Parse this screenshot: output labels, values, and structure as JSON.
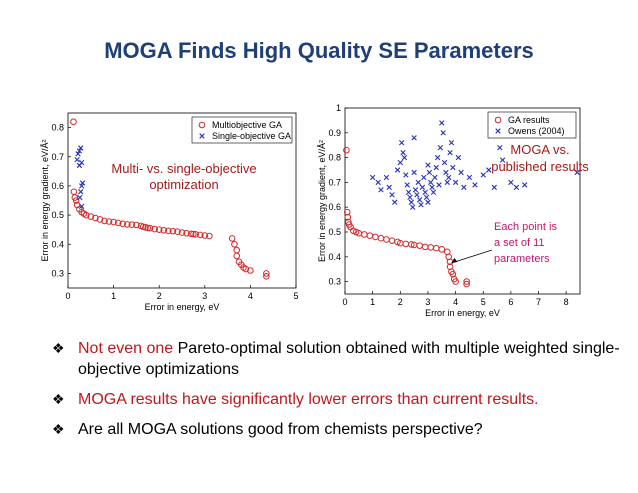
{
  "title": "MOGA Finds High Quality SE Parameters",
  "colors": {
    "title": "#1f3f77",
    "red_text": "#c0171c",
    "series_red": "#d42a2a",
    "series_blue": "#2633b8",
    "annotation_pink": "#c2176d"
  },
  "bullets": [
    {
      "icon": "diamond-bullet-icon",
      "parts": [
        {
          "text": "Not even one",
          "red": true
        },
        {
          "text": " Pareto-optimal solution obtained with multiple weighted single-objective optimizations",
          "red": false
        }
      ]
    },
    {
      "icon": "diamond-bullet-icon",
      "parts": [
        {
          "text": "MOGA results have significantly lower errors than current results.",
          "red": true
        }
      ]
    },
    {
      "icon": "diamond-bullet-icon",
      "parts": [
        {
          "text": "Are all MOGA solutions good from chemists perspective?",
          "red": false
        }
      ]
    }
  ],
  "chart_data": [
    {
      "type": "scatter",
      "xlabel": "Error in energy, eV",
      "ylabel": "Error in energy gradient, eV/Å²",
      "xlim": [
        0,
        5
      ],
      "ylim": [
        0.25,
        0.85
      ],
      "xticks": [
        "0",
        "1",
        "2",
        "3",
        "4",
        "5"
      ],
      "yticks": [
        "0.3",
        "0.4",
        "0.5",
        "0.6",
        "0.7",
        "0.8"
      ],
      "legend_position": "top-right",
      "annotation": [
        "Multi- vs. single-objective",
        "optimization"
      ],
      "series": [
        {
          "name": "Multiobjective GA",
          "marker": "circle",
          "color": "#d42a2a",
          "points": [
            [
              0.12,
              0.82
            ],
            [
              0.13,
              0.58
            ],
            [
              0.15,
              0.56
            ],
            [
              0.18,
              0.55
            ],
            [
              0.2,
              0.535
            ],
            [
              0.25,
              0.52
            ],
            [
              0.3,
              0.51
            ],
            [
              0.35,
              0.505
            ],
            [
              0.4,
              0.5
            ],
            [
              0.5,
              0.495
            ],
            [
              0.6,
              0.49
            ],
            [
              0.7,
              0.485
            ],
            [
              0.8,
              0.48
            ],
            [
              0.9,
              0.478
            ],
            [
              1.0,
              0.476
            ],
            [
              1.1,
              0.473
            ],
            [
              1.2,
              0.47
            ],
            [
              1.3,
              0.468
            ],
            [
              1.4,
              0.467
            ],
            [
              1.5,
              0.466
            ],
            [
              1.6,
              0.463
            ],
            [
              1.65,
              0.46
            ],
            [
              1.7,
              0.458
            ],
            [
              1.75,
              0.456
            ],
            [
              1.8,
              0.455
            ],
            [
              1.9,
              0.452
            ],
            [
              2.0,
              0.45
            ],
            [
              2.1,
              0.448
            ],
            [
              2.2,
              0.446
            ],
            [
              2.3,
              0.445
            ],
            [
              2.4,
              0.443
            ],
            [
              2.5,
              0.44
            ],
            [
              2.6,
              0.438
            ],
            [
              2.7,
              0.436
            ],
            [
              2.75,
              0.435
            ],
            [
              2.8,
              0.434
            ],
            [
              2.9,
              0.432
            ],
            [
              3.0,
              0.43
            ],
            [
              3.1,
              0.428
            ],
            [
              3.6,
              0.42
            ],
            [
              3.65,
              0.4
            ],
            [
              3.7,
              0.38
            ],
            [
              3.7,
              0.36
            ],
            [
              3.75,
              0.34
            ],
            [
              3.8,
              0.33
            ],
            [
              3.85,
              0.32
            ],
            [
              3.9,
              0.315
            ],
            [
              4.0,
              0.31
            ],
            [
              4.35,
              0.3
            ],
            [
              4.35,
              0.29
            ]
          ]
        },
        {
          "name": "Single-objective GA",
          "marker": "x",
          "color": "#2633b8",
          "points": [
            [
              0.2,
              0.69
            ],
            [
              0.22,
              0.71
            ],
            [
              0.25,
              0.72
            ],
            [
              0.28,
              0.73
            ],
            [
              0.3,
              0.68
            ],
            [
              0.25,
              0.67
            ],
            [
              0.32,
              0.61
            ],
            [
              0.3,
              0.6
            ],
            [
              0.28,
              0.58
            ],
            [
              0.26,
              0.56
            ],
            [
              0.3,
              0.53
            ]
          ]
        }
      ]
    },
    {
      "type": "scatter",
      "xlabel": "Error in energy, eV",
      "ylabel": "Error in energy gradient, eV/Å²",
      "xlim": [
        0,
        8.5
      ],
      "ylim": [
        0.25,
        1.0
      ],
      "xticks": [
        "0",
        "1",
        "2",
        "3",
        "4",
        "5",
        "6",
        "7",
        "8"
      ],
      "yticks": [
        "0.3",
        "0.4",
        "0.5",
        "0.6",
        "0.7",
        "0.8",
        "0.9",
        "1"
      ],
      "legend_position": "top-right",
      "annotation": [
        "MOGA vs.",
        "published results"
      ],
      "callout": [
        "Each point is",
        "a set of 11",
        "parameters"
      ],
      "series": [
        {
          "name": "GA results",
          "marker": "circle",
          "color": "#d42a2a",
          "points": [
            [
              0.05,
              0.83
            ],
            [
              0.08,
              0.58
            ],
            [
              0.1,
              0.56
            ],
            [
              0.12,
              0.54
            ],
            [
              0.15,
              0.53
            ],
            [
              0.2,
              0.52
            ],
            [
              0.3,
              0.505
            ],
            [
              0.4,
              0.5
            ],
            [
              0.5,
              0.495
            ],
            [
              0.7,
              0.49
            ],
            [
              0.9,
              0.485
            ],
            [
              1.1,
              0.48
            ],
            [
              1.3,
              0.475
            ],
            [
              1.5,
              0.47
            ],
            [
              1.7,
              0.465
            ],
            [
              1.9,
              0.46
            ],
            [
              2.0,
              0.455
            ],
            [
              2.2,
              0.452
            ],
            [
              2.4,
              0.45
            ],
            [
              2.5,
              0.448
            ],
            [
              2.7,
              0.445
            ],
            [
              2.9,
              0.44
            ],
            [
              3.1,
              0.438
            ],
            [
              3.3,
              0.435
            ],
            [
              3.5,
              0.43
            ],
            [
              3.7,
              0.42
            ],
            [
              3.75,
              0.4
            ],
            [
              3.8,
              0.38
            ],
            [
              3.8,
              0.36
            ],
            [
              3.85,
              0.34
            ],
            [
              3.9,
              0.33
            ],
            [
              3.95,
              0.31
            ],
            [
              4.0,
              0.3
            ],
            [
              4.4,
              0.3
            ],
            [
              4.4,
              0.29
            ]
          ]
        },
        {
          "name": "Owens (2004)",
          "marker": "x",
          "color": "#2633b8",
          "points": [
            [
              1.0,
              0.72
            ],
            [
              1.2,
              0.7
            ],
            [
              1.3,
              0.67
            ],
            [
              1.5,
              0.72
            ],
            [
              1.6,
              0.68
            ],
            [
              1.7,
              0.65
            ],
            [
              1.8,
              0.62
            ],
            [
              1.9,
              0.75
            ],
            [
              2.0,
              0.78
            ],
            [
              2.05,
              0.86
            ],
            [
              2.1,
              0.82
            ],
            [
              2.15,
              0.8
            ],
            [
              2.2,
              0.73
            ],
            [
              2.25,
              0.69
            ],
            [
              2.3,
              0.66
            ],
            [
              2.35,
              0.64
            ],
            [
              2.4,
              0.62
            ],
            [
              2.45,
              0.6
            ],
            [
              2.5,
              0.74
            ],
            [
              2.5,
              0.88
            ],
            [
              2.55,
              0.67
            ],
            [
              2.6,
              0.65
            ],
            [
              2.65,
              0.7
            ],
            [
              2.7,
              0.63
            ],
            [
              2.75,
              0.61
            ],
            [
              2.8,
              0.68
            ],
            [
              2.85,
              0.72
            ],
            [
              2.9,
              0.66
            ],
            [
              2.95,
              0.64
            ],
            [
              3.0,
              0.62
            ],
            [
              3.0,
              0.77
            ],
            [
              3.05,
              0.74
            ],
            [
              3.1,
              0.7
            ],
            [
              3.15,
              0.68
            ],
            [
              3.2,
              0.66
            ],
            [
              3.25,
              0.72
            ],
            [
              3.3,
              0.76
            ],
            [
              3.35,
              0.8
            ],
            [
              3.4,
              0.69
            ],
            [
              3.45,
              0.84
            ],
            [
              3.5,
              0.94
            ],
            [
              3.55,
              0.9
            ],
            [
              3.6,
              0.78
            ],
            [
              3.65,
              0.74
            ],
            [
              3.7,
              0.7
            ],
            [
              3.75,
              0.72
            ],
            [
              3.8,
              0.82
            ],
            [
              3.85,
              0.86
            ],
            [
              3.9,
              0.76
            ],
            [
              4.0,
              0.7
            ],
            [
              4.1,
              0.8
            ],
            [
              4.2,
              0.74
            ],
            [
              4.3,
              0.68
            ],
            [
              4.5,
              0.72
            ],
            [
              4.7,
              0.69
            ],
            [
              5.0,
              0.73
            ],
            [
              5.2,
              0.75
            ],
            [
              5.4,
              0.68
            ],
            [
              5.6,
              0.84
            ],
            [
              5.7,
              0.79
            ],
            [
              6.0,
              0.7
            ],
            [
              6.2,
              0.68
            ],
            [
              6.5,
              0.69
            ],
            [
              8.4,
              0.74
            ]
          ]
        }
      ]
    }
  ]
}
